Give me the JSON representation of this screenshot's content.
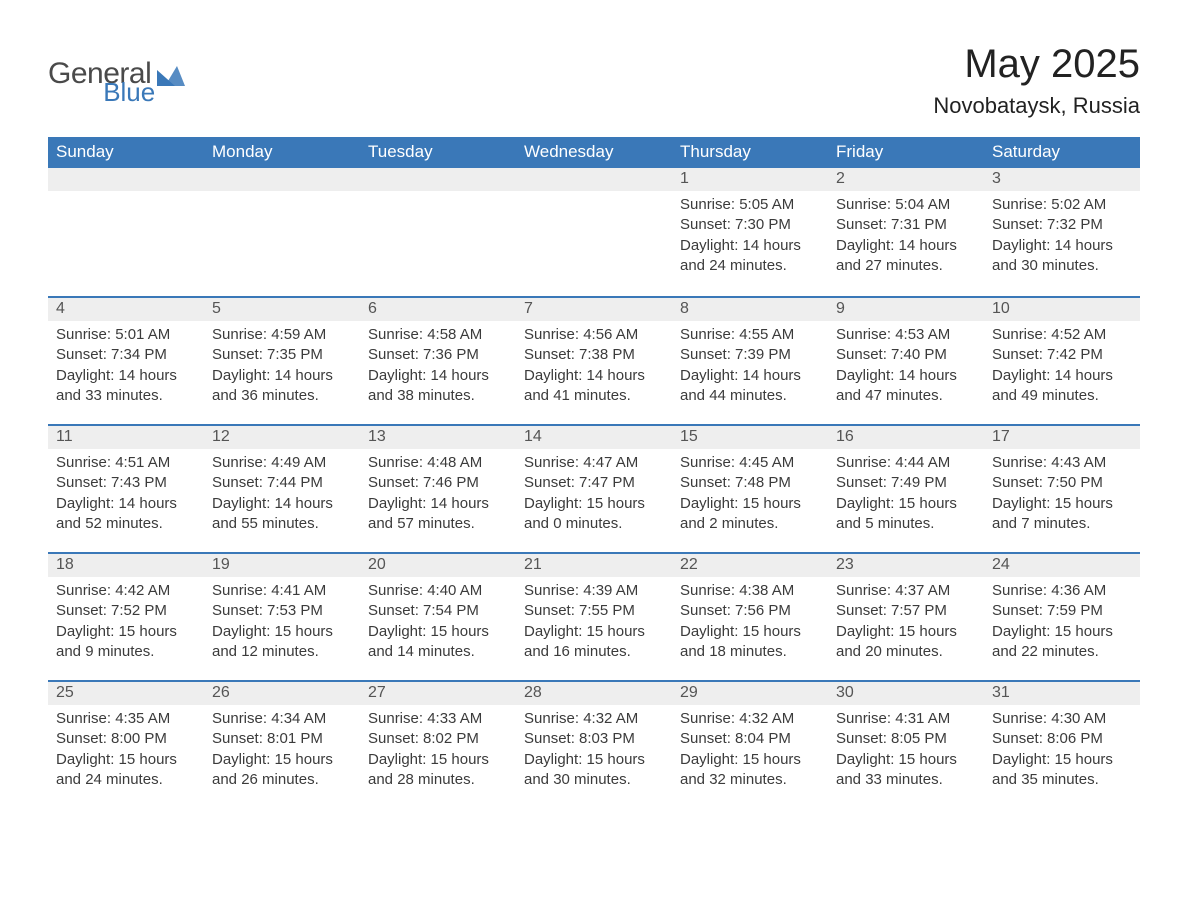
{
  "logo": {
    "general": "General",
    "blue": "Blue",
    "mark_color": "#3a78b8"
  },
  "title": "May 2025",
  "location": "Novobataysk, Russia",
  "colors": {
    "header_bg": "#3a78b8",
    "header_text": "#ffffff",
    "daynum_bg": "#eeeeee",
    "week_border": "#3a78b8",
    "body_text": "#3b3b3b",
    "page_bg": "#ffffff"
  },
  "days_of_week": [
    "Sunday",
    "Monday",
    "Tuesday",
    "Wednesday",
    "Thursday",
    "Friday",
    "Saturday"
  ],
  "labels": {
    "sunrise": "Sunrise:",
    "sunset": "Sunset:",
    "daylight": "Daylight:"
  },
  "weeks": [
    [
      {
        "empty": true
      },
      {
        "empty": true
      },
      {
        "empty": true
      },
      {
        "empty": true
      },
      {
        "day": "1",
        "sunrise": "5:05 AM",
        "sunset": "7:30 PM",
        "daylight": "14 hours and 24 minutes."
      },
      {
        "day": "2",
        "sunrise": "5:04 AM",
        "sunset": "7:31 PM",
        "daylight": "14 hours and 27 minutes."
      },
      {
        "day": "3",
        "sunrise": "5:02 AM",
        "sunset": "7:32 PM",
        "daylight": "14 hours and 30 minutes."
      }
    ],
    [
      {
        "day": "4",
        "sunrise": "5:01 AM",
        "sunset": "7:34 PM",
        "daylight": "14 hours and 33 minutes."
      },
      {
        "day": "5",
        "sunrise": "4:59 AM",
        "sunset": "7:35 PM",
        "daylight": "14 hours and 36 minutes."
      },
      {
        "day": "6",
        "sunrise": "4:58 AM",
        "sunset": "7:36 PM",
        "daylight": "14 hours and 38 minutes."
      },
      {
        "day": "7",
        "sunrise": "4:56 AM",
        "sunset": "7:38 PM",
        "daylight": "14 hours and 41 minutes."
      },
      {
        "day": "8",
        "sunrise": "4:55 AM",
        "sunset": "7:39 PM",
        "daylight": "14 hours and 44 minutes."
      },
      {
        "day": "9",
        "sunrise": "4:53 AM",
        "sunset": "7:40 PM",
        "daylight": "14 hours and 47 minutes."
      },
      {
        "day": "10",
        "sunrise": "4:52 AM",
        "sunset": "7:42 PM",
        "daylight": "14 hours and 49 minutes."
      }
    ],
    [
      {
        "day": "11",
        "sunrise": "4:51 AM",
        "sunset": "7:43 PM",
        "daylight": "14 hours and 52 minutes."
      },
      {
        "day": "12",
        "sunrise": "4:49 AM",
        "sunset": "7:44 PM",
        "daylight": "14 hours and 55 minutes."
      },
      {
        "day": "13",
        "sunrise": "4:48 AM",
        "sunset": "7:46 PM",
        "daylight": "14 hours and 57 minutes."
      },
      {
        "day": "14",
        "sunrise": "4:47 AM",
        "sunset": "7:47 PM",
        "daylight": "15 hours and 0 minutes."
      },
      {
        "day": "15",
        "sunrise": "4:45 AM",
        "sunset": "7:48 PM",
        "daylight": "15 hours and 2 minutes."
      },
      {
        "day": "16",
        "sunrise": "4:44 AM",
        "sunset": "7:49 PM",
        "daylight": "15 hours and 5 minutes."
      },
      {
        "day": "17",
        "sunrise": "4:43 AM",
        "sunset": "7:50 PM",
        "daylight": "15 hours and 7 minutes."
      }
    ],
    [
      {
        "day": "18",
        "sunrise": "4:42 AM",
        "sunset": "7:52 PM",
        "daylight": "15 hours and 9 minutes."
      },
      {
        "day": "19",
        "sunrise": "4:41 AM",
        "sunset": "7:53 PM",
        "daylight": "15 hours and 12 minutes."
      },
      {
        "day": "20",
        "sunrise": "4:40 AM",
        "sunset": "7:54 PM",
        "daylight": "15 hours and 14 minutes."
      },
      {
        "day": "21",
        "sunrise": "4:39 AM",
        "sunset": "7:55 PM",
        "daylight": "15 hours and 16 minutes."
      },
      {
        "day": "22",
        "sunrise": "4:38 AM",
        "sunset": "7:56 PM",
        "daylight": "15 hours and 18 minutes."
      },
      {
        "day": "23",
        "sunrise": "4:37 AM",
        "sunset": "7:57 PM",
        "daylight": "15 hours and 20 minutes."
      },
      {
        "day": "24",
        "sunrise": "4:36 AM",
        "sunset": "7:59 PM",
        "daylight": "15 hours and 22 minutes."
      }
    ],
    [
      {
        "day": "25",
        "sunrise": "4:35 AM",
        "sunset": "8:00 PM",
        "daylight": "15 hours and 24 minutes."
      },
      {
        "day": "26",
        "sunrise": "4:34 AM",
        "sunset": "8:01 PM",
        "daylight": "15 hours and 26 minutes."
      },
      {
        "day": "27",
        "sunrise": "4:33 AM",
        "sunset": "8:02 PM",
        "daylight": "15 hours and 28 minutes."
      },
      {
        "day": "28",
        "sunrise": "4:32 AM",
        "sunset": "8:03 PM",
        "daylight": "15 hours and 30 minutes."
      },
      {
        "day": "29",
        "sunrise": "4:32 AM",
        "sunset": "8:04 PM",
        "daylight": "15 hours and 32 minutes."
      },
      {
        "day": "30",
        "sunrise": "4:31 AM",
        "sunset": "8:05 PM",
        "daylight": "15 hours and 33 minutes."
      },
      {
        "day": "31",
        "sunrise": "4:30 AM",
        "sunset": "8:06 PM",
        "daylight": "15 hours and 35 minutes."
      }
    ]
  ]
}
